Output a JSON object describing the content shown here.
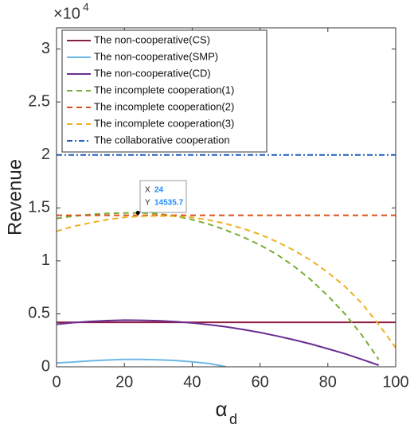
{
  "chart_data": {
    "type": "line",
    "ylabel": "Revenue",
    "xlabel": "α",
    "xlabel_subscript": "d",
    "y_multiplier": "×10",
    "y_multiplier_exponent": "4",
    "x": [
      0,
      5,
      10,
      15,
      20,
      25,
      30,
      35,
      40,
      45,
      50,
      55,
      60,
      65,
      70,
      75,
      80,
      85,
      90,
      95,
      100
    ],
    "xlim": [
      0,
      100
    ],
    "xticks": [
      0,
      20,
      40,
      60,
      80,
      100
    ],
    "ylim": [
      0,
      32000
    ],
    "yticks": [
      {
        "value": 0,
        "label": "0"
      },
      {
        "value": 5000,
        "label": "0.5"
      },
      {
        "value": 10000,
        "label": "1"
      },
      {
        "value": 15000,
        "label": "1.5"
      },
      {
        "value": 20000,
        "label": "2"
      },
      {
        "value": 25000,
        "label": "2.5"
      },
      {
        "value": 30000,
        "label": "3"
      }
    ],
    "grid": false,
    "legend": "upper-left",
    "series": [
      {
        "name": "The non-cooperative(CS)",
        "color": "#8c1d40",
        "dash": "solid",
        "values": [
          4200,
          4200,
          4200,
          4200,
          4200,
          4200,
          4200,
          4200,
          4200,
          4200,
          4200,
          4200,
          4200,
          4200,
          4200,
          4200,
          4200,
          4200,
          4200,
          4200,
          4200
        ]
      },
      {
        "name": "The non-cooperative(SMP)",
        "color": "#6cb8e6",
        "dash": "solid",
        "values": [
          350,
          450,
          560,
          640,
          690,
          700,
          660,
          590,
          470,
          310,
          0,
          null,
          null,
          null,
          null,
          null,
          null,
          null,
          null,
          null,
          null
        ]
      },
      {
        "name": "The non-cooperative(CD)",
        "color": "#6a2c91",
        "dash": "solid",
        "values": [
          4010,
          4170,
          4280,
          4360,
          4400,
          4390,
          4350,
          4260,
          4140,
          3970,
          3770,
          3520,
          3240,
          2910,
          2550,
          2150,
          1700,
          1230,
          700,
          150,
          null
        ]
      },
      {
        "name": "The incomplete cooperation(1)",
        "color": "#77ac30",
        "dash": "dashed",
        "values": [
          14000,
          14230,
          14380,
          14480,
          14520,
          14530,
          14450,
          14230,
          13900,
          13450,
          12900,
          12250,
          11500,
          10600,
          9500,
          8200,
          6700,
          5000,
          3000,
          700,
          null
        ]
      },
      {
        "name": "The incomplete cooperation(2)",
        "color": "#d95319",
        "dash": "dashed",
        "values": [
          14300,
          14300,
          14300,
          14300,
          14300,
          14300,
          14300,
          14300,
          14300,
          14300,
          14300,
          14300,
          14300,
          14300,
          14300,
          14300,
          14300,
          14300,
          14300,
          14300,
          14300
        ]
      },
      {
        "name": "The incomplete cooperation(3)",
        "color": "#edb120",
        "dash": "dashed",
        "values": [
          12800,
          13250,
          13600,
          13900,
          14100,
          14220,
          14250,
          14220,
          14100,
          13850,
          13500,
          13050,
          12500,
          11800,
          11000,
          10050,
          8900,
          7600,
          6000,
          4000,
          1800
        ]
      },
      {
        "name": "The collaborative cooperation",
        "color": "#1f5fbf",
        "dash": "dashdot",
        "values": [
          20000,
          20000,
          20000,
          20000,
          20000,
          20000,
          20000,
          20000,
          20000,
          20000,
          20000,
          20000,
          20000,
          20000,
          20000,
          20000,
          20000,
          20000,
          20000,
          20000,
          20000
        ]
      }
    ],
    "datatip": {
      "x_name": "X",
      "x": 24,
      "y_name": "Y",
      "y": 14535.7
    }
  }
}
